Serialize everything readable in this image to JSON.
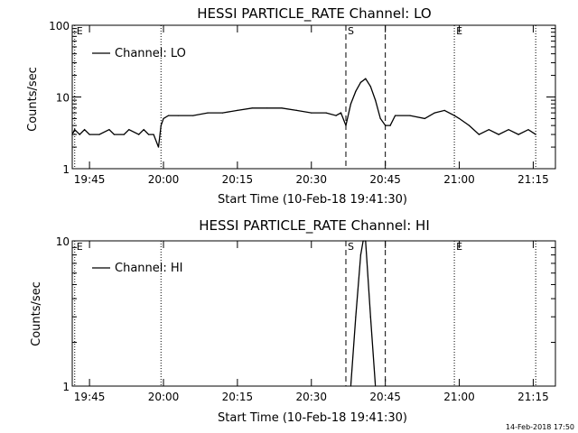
{
  "chart_data": [
    {
      "type": "line",
      "title": "HESSI PARTICLE_RATE Channel: LO",
      "xlabel": "Start Time (10-Feb-18 19:41:30)",
      "ylabel": "Counts/sec",
      "yscale": "log",
      "ylim": [
        1,
        100
      ],
      "xlim": [
        "19:41:30",
        "21:19:30"
      ],
      "yticks": [
        "1",
        "10",
        "100"
      ],
      "xticks": [
        "19:45",
        "20:00",
        "20:15",
        "20:30",
        "20:45",
        "21:00",
        "21:15"
      ],
      "legend": "Channel: LO",
      "legend_position": "top-left",
      "markers": [
        {
          "label": "E",
          "style": "dotted"
        },
        {
          "label": "",
          "style": "dotted"
        },
        {
          "label": "S",
          "style": "dashed"
        },
        {
          "label": "",
          "style": "dashed"
        },
        {
          "label": "E",
          "style": "dotted"
        },
        {
          "label": "",
          "style": "dotted"
        }
      ],
      "series": [
        {
          "x": [
            "19:41:30",
            "19:42",
            "19:43",
            "19:44",
            "19:45",
            "19:47",
            "19:49",
            "19:50",
            "19:52",
            "19:53",
            "19:55",
            "19:56",
            "19:57",
            "19:58",
            "19:59",
            "19:59:30",
            "20:00",
            "20:01",
            "20:03",
            "20:06",
            "20:09",
            "20:12",
            "20:15",
            "20:18",
            "20:21",
            "20:24",
            "20:27",
            "20:30",
            "20:33",
            "20:35",
            "20:36",
            "20:37",
            "20:38",
            "20:39",
            "20:40",
            "20:41",
            "20:42",
            "20:43",
            "20:44",
            "20:45",
            "20:46",
            "20:47",
            "20:50",
            "20:53",
            "20:55",
            "20:57",
            "20:59",
            "21:00",
            "21:02",
            "21:04",
            "21:06",
            "21:08",
            "21:10",
            "21:12",
            "21:14",
            "21:15:30"
          ],
          "values": [
            3,
            3.5,
            3,
            3.5,
            3,
            3,
            3.5,
            3,
            3,
            3.5,
            3,
            3.5,
            3,
            3,
            2,
            4,
            5,
            5.5,
            5.5,
            5.5,
            6,
            6,
            6.5,
            7,
            7,
            7,
            6.5,
            6,
            6,
            5.5,
            6,
            4,
            8,
            12,
            16,
            18,
            14,
            9,
            5,
            4,
            4,
            5.5,
            5.5,
            5,
            6,
            6.5,
            5.5,
            5,
            4,
            3,
            3.5,
            3,
            3.5,
            3,
            3.5,
            3
          ]
        }
      ]
    },
    {
      "type": "line",
      "title": "HESSI PARTICLE_RATE Channel: HI",
      "xlabel": "Start Time (10-Feb-18 19:41:30)",
      "ylabel": "Counts/sec",
      "yscale": "log",
      "ylim": [
        1,
        10
      ],
      "xlim": [
        "19:41:30",
        "21:19:30"
      ],
      "yticks": [
        "1",
        "10"
      ],
      "xticks": [
        "19:45",
        "20:00",
        "20:15",
        "20:30",
        "20:45",
        "21:00",
        "21:15"
      ],
      "legend": "Channel: HI",
      "legend_position": "top-left",
      "markers": [
        {
          "label": "E",
          "style": "dotted"
        },
        {
          "label": "",
          "style": "dotted"
        },
        {
          "label": "S",
          "style": "dashed"
        },
        {
          "label": "",
          "style": "dashed"
        },
        {
          "label": "E",
          "style": "dotted"
        },
        {
          "label": "",
          "style": "dotted"
        }
      ],
      "series": [
        {
          "x": [
            "20:38",
            "20:39",
            "20:40",
            "20:40:30",
            "20:41",
            "20:42",
            "20:43"
          ],
          "values": [
            1,
            3,
            8,
            10,
            10,
            3,
            1
          ]
        }
      ]
    }
  ],
  "footer_timestamp": "14-Feb-2018 17:50"
}
